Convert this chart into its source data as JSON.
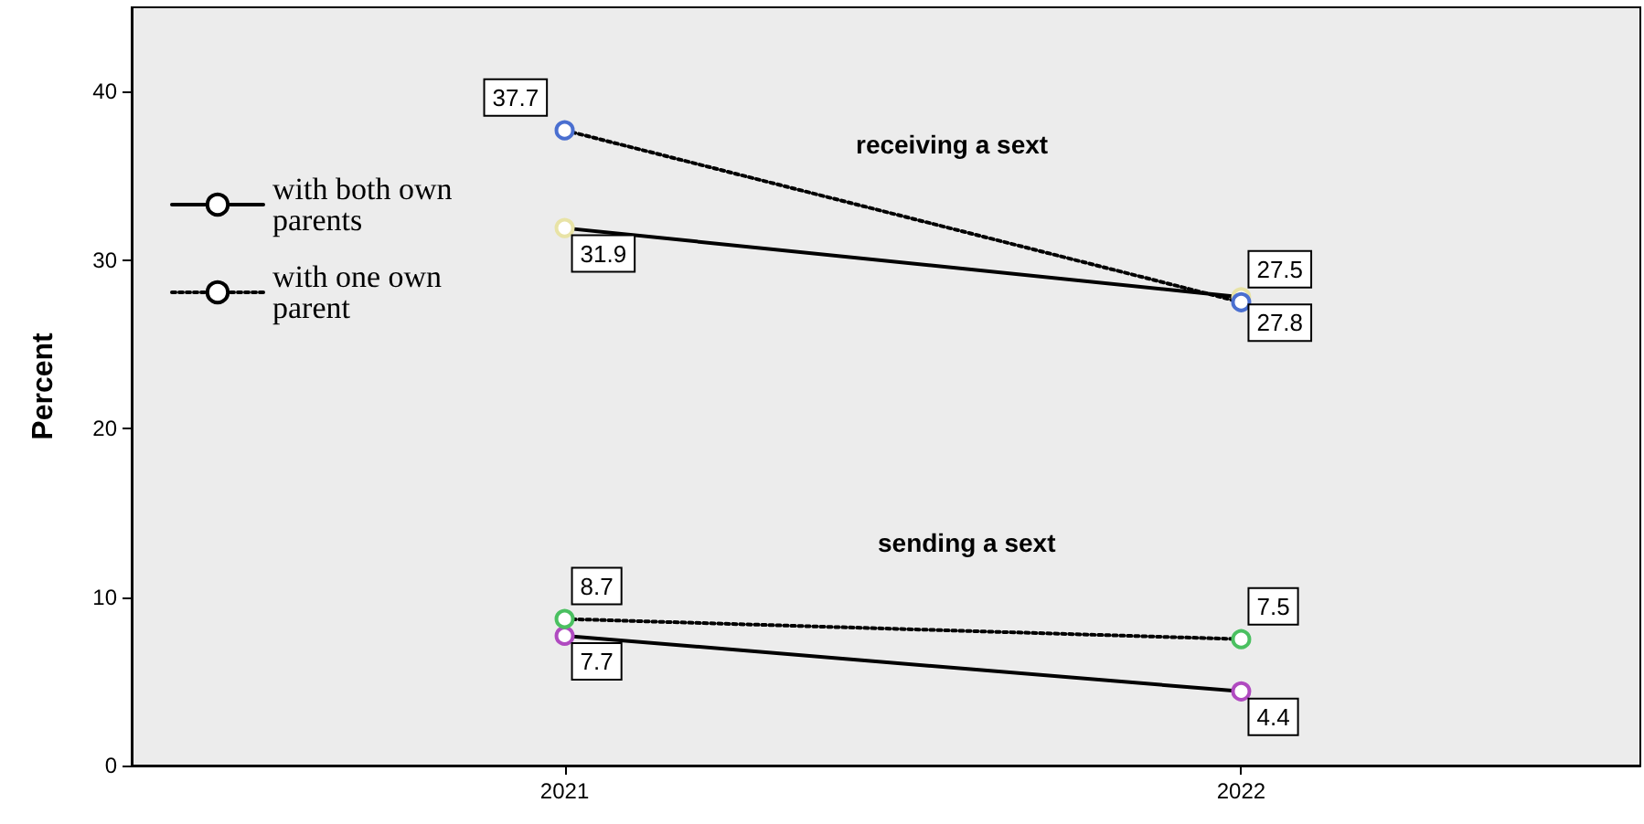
{
  "chart_data": {
    "type": "line",
    "ylabel": "Percent",
    "x": [
      2021,
      2022
    ],
    "xlim": [
      2020.36,
      2022.59
    ],
    "xticks": [
      2021,
      2022
    ],
    "ylim": [
      0,
      45
    ],
    "yticks": [
      0,
      10,
      20,
      30,
      40
    ],
    "series": [
      {
        "name": "with both own parents",
        "color": "#000000",
        "line_style": "solid",
        "colors": [
          "#e8e3a6",
          "#e8e3a6"
        ],
        "values": [
          31.9,
          27.8
        ]
      },
      {
        "name": "with one own parent",
        "color": "#000000",
        "line_style": "dotted",
        "colors": [
          "#4a6fd0",
          "#4a6fd0"
        ],
        "values": [
          37.7,
          27.5
        ]
      },
      {
        "color": "#000000",
        "line_style": "solid",
        "colors": [
          "#b04ac0",
          "#b04ac0"
        ],
        "values": [
          7.7,
          4.4
        ]
      },
      {
        "color": "#000000",
        "line_style": "dotted",
        "colors": [
          "#4ac060",
          "#4ac060"
        ],
        "values": [
          8.7,
          7.5
        ]
      }
    ],
    "annotations": [
      "receiving a sext",
      "sending a sext"
    ],
    "data_labels": true,
    "marker": "circle",
    "grid": false,
    "legend": "left"
  }
}
